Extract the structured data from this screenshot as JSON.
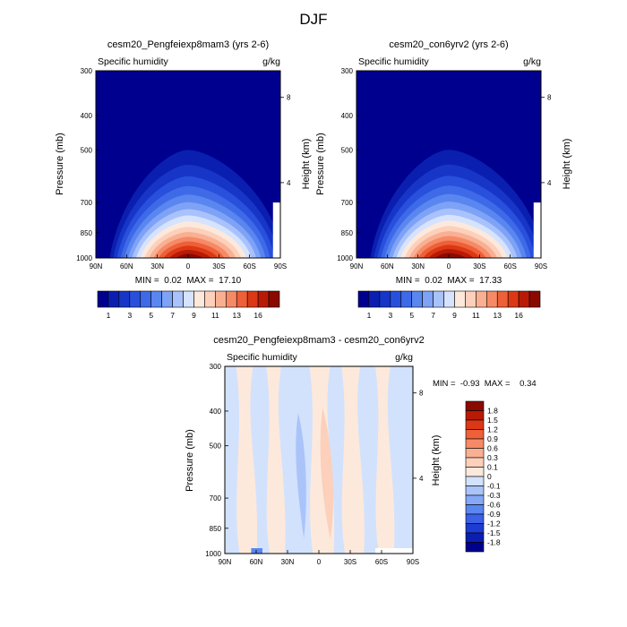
{
  "figure": {
    "title": "DJF"
  },
  "colors": {
    "main_scale": [
      "#00008f",
      "#0a1fb0",
      "#1736c8",
      "#2850dc",
      "#3e6ae8",
      "#5a86f0",
      "#7ea2f6",
      "#a9c2fb",
      "#d6e3fe",
      "#fde9dc",
      "#fcd0bb",
      "#f9b092",
      "#f68a66",
      "#ee6038",
      "#dc3815",
      "#b81a05",
      "#8a0a00"
    ],
    "diff_scale": [
      "#00008f",
      "#0a1fb0",
      "#1e3cd2",
      "#3c60e6",
      "#5a86f0",
      "#86a8f6",
      "#aac4fa",
      "#d2e2fd",
      "#fde9dc",
      "#fcd0bb",
      "#f9b092",
      "#f68a66",
      "#ee6038",
      "#dc3815",
      "#b81a05",
      "#8a0a00"
    ]
  },
  "panels": [
    {
      "id": "top-left",
      "title": "cesm20_Pengfeiexp8mam3 (yrs 2-6)",
      "left_label": "Specific humidity",
      "right_label": "g/kg",
      "ylabel": "Pressure (mb)",
      "y2label": "Height (km)",
      "stats": "MIN =  0.02  MAX =  17.10"
    },
    {
      "id": "top-right",
      "title": "cesm20_con6yrv2 (yrs 2-6)",
      "left_label": "Specific humidity",
      "right_label": "g/kg",
      "ylabel": "Pressure (mb)",
      "y2label": "Height (km)",
      "stats": "MIN =  0.02  MAX =  17.33"
    },
    {
      "id": "bottom",
      "title": "cesm20_Pengfeiexp8mam3 - cesm20_con6yrv2",
      "left_label": "Specific humidity",
      "right_label": "g/kg",
      "ylabel": "Pressure (mb)",
      "y2label": "Height (km)",
      "stats": "MIN =  -0.93  MAX =    0.34"
    }
  ],
  "axes": {
    "x_ticks": [
      "90N",
      "60N",
      "30N",
      "0",
      "30S",
      "60S",
      "90S"
    ],
    "y_ticks": [
      "300",
      "400",
      "500",
      "700",
      "850",
      "1000"
    ],
    "y2_ticks": [
      "8",
      "4"
    ]
  },
  "colorbars": {
    "main_labels": [
      "1",
      "3",
      "5",
      "7",
      "9",
      "11",
      "13",
      "16"
    ],
    "diff_labels": [
      "1.8",
      "1.5",
      "1.2",
      "0.9",
      "0.6",
      "0.3",
      "0.1",
      "0",
      "-0.1",
      "-0.3",
      "-0.6",
      "-0.9",
      "-1.2",
      "-1.5",
      "-1.8"
    ]
  },
  "chart_data": [
    {
      "type": "heatmap",
      "title": "cesm20_Pengfeiexp8mam3 (yrs 2-6)",
      "variable": "Specific humidity",
      "units": "g/kg",
      "xlabel": "",
      "ylabel": "Pressure (mb)",
      "y2label": "Height (km)",
      "x_range": [
        "90N",
        "90S"
      ],
      "y_range": [
        300,
        1000
      ],
      "min": 0.02,
      "max": 17.1,
      "contour_levels": [
        1,
        2,
        3,
        4,
        5,
        6,
        7,
        8,
        9,
        10,
        11,
        12,
        13,
        14,
        15,
        16
      ],
      "peak": {
        "lat": "0",
        "pressure": 1000,
        "value": 17.1
      }
    },
    {
      "type": "heatmap",
      "title": "cesm20_con6yrv2 (yrs 2-6)",
      "variable": "Specific humidity",
      "units": "g/kg",
      "xlabel": "",
      "ylabel": "Pressure (mb)",
      "y2label": "Height (km)",
      "x_range": [
        "90N",
        "90S"
      ],
      "y_range": [
        300,
        1000
      ],
      "min": 0.02,
      "max": 17.33,
      "contour_levels": [
        1,
        2,
        3,
        4,
        5,
        6,
        7,
        8,
        9,
        10,
        11,
        12,
        13,
        14,
        15,
        16
      ],
      "peak": {
        "lat": "0",
        "pressure": 1000,
        "value": 17.33
      }
    },
    {
      "type": "heatmap",
      "title": "cesm20_Pengfeiexp8mam3 - cesm20_con6yrv2",
      "variable": "Specific humidity",
      "units": "g/kg",
      "xlabel": "",
      "ylabel": "Pressure (mb)",
      "y2label": "Height (km)",
      "x_range": [
        "90N",
        "90S"
      ],
      "y_range": [
        300,
        1000
      ],
      "min": -0.93,
      "max": 0.34,
      "contour_levels": [
        -1.8,
        -1.5,
        -1.2,
        -0.9,
        -0.6,
        -0.3,
        -0.1,
        0,
        0.1,
        0.3,
        0.6,
        0.9,
        1.2,
        1.5,
        1.8
      ]
    }
  ]
}
